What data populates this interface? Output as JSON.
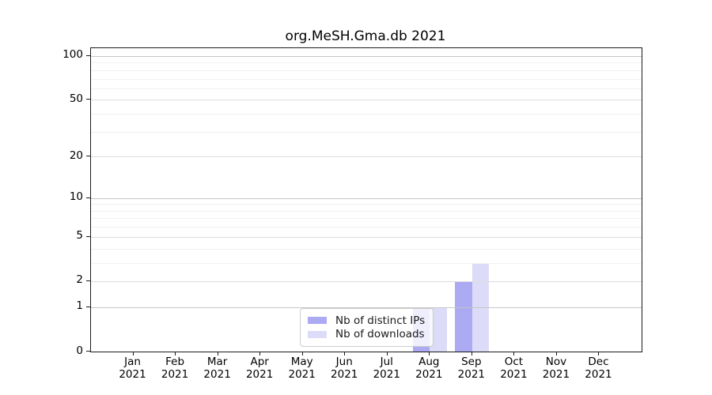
{
  "title": "org.MeSH.Gma.db 2021",
  "chart_data": {
    "type": "bar",
    "title": "org.MeSH.Gma.db 2021",
    "categories": [
      "Jan",
      "Feb",
      "Mar",
      "Apr",
      "May",
      "Jun",
      "Jul",
      "Aug",
      "Sep",
      "Oct",
      "Nov",
      "Dec"
    ],
    "x_year": "2021",
    "series": [
      {
        "name": "Nb of distinct IPs",
        "color": "#abaaf2",
        "values": [
          0,
          0,
          0,
          0,
          0,
          0,
          0,
          1,
          2,
          0,
          0,
          0
        ]
      },
      {
        "name": "Nb of downloads",
        "color": "#dcdcf8",
        "values": [
          0,
          0,
          0,
          0,
          0,
          0,
          0,
          1,
          3,
          0,
          0,
          0
        ]
      }
    ],
    "yscale": "log1p",
    "ylim": [
      0,
      113
    ],
    "yticks": [
      0,
      1,
      2,
      5,
      10,
      20,
      50,
      100
    ],
    "y_minor_gridlines": [
      3,
      4,
      6,
      7,
      8,
      9,
      30,
      40,
      60,
      70,
      80,
      90
    ],
    "grid": "horizontal",
    "legend_position": "bottom-center-inside"
  },
  "legend": {
    "items": [
      {
        "label": "Nb of distinct IPs",
        "color": "#abaaf2"
      },
      {
        "label": "Nb of downloads",
        "color": "#dcdcf8"
      }
    ]
  },
  "colors": {
    "bar_ips": "#abaaf2",
    "bar_downloads": "#dcdcf8",
    "grid_decade": "#c6c6c6",
    "grid_major": "#dcdcdc",
    "grid_minor": "#f0f0f0",
    "spine": "#1a1a1a",
    "text": "#000000",
    "legend_border": "#cccccc"
  }
}
